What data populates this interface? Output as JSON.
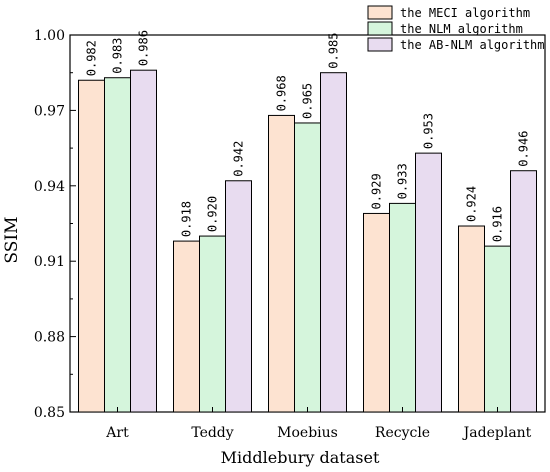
{
  "chart_data": {
    "type": "bar",
    "categories": [
      "Art",
      "Teddy",
      "Moebius",
      "Recycle",
      "Jadeplant"
    ],
    "series": [
      {
        "name": "the MECI algorithm",
        "color": "#FDE3D1",
        "values": [
          0.982,
          0.918,
          0.968,
          0.929,
          0.924
        ],
        "labels": [
          "0.982",
          "0.918",
          "0.968",
          "0.929",
          "0.924"
        ]
      },
      {
        "name": "the NLM algorithm",
        "color": "#D5F5DC",
        "values": [
          0.983,
          0.92,
          0.965,
          0.933,
          0.916
        ],
        "labels": [
          "0.983",
          "0.920",
          "0.965",
          "0.933",
          "0.916"
        ]
      },
      {
        "name": "the AB-NLM algorithm",
        "color": "#E8DCF0",
        "values": [
          0.986,
          0.942,
          0.985,
          0.953,
          0.946
        ],
        "labels": [
          "0.986",
          "0.942",
          "0.985",
          "0.953",
          "0.946"
        ]
      }
    ],
    "xlabel": "Middlebury dataset",
    "ylabel": "SSIM",
    "ylim": [
      0.85,
      1.0
    ],
    "yticks": [
      0.85,
      0.88,
      0.91,
      0.94,
      0.97,
      1.0
    ],
    "ytick_labels": [
      "0.85",
      "0.88",
      "0.91",
      "0.94",
      "0.97",
      "1.00"
    ],
    "grid": false,
    "legend_position": "top-right"
  }
}
